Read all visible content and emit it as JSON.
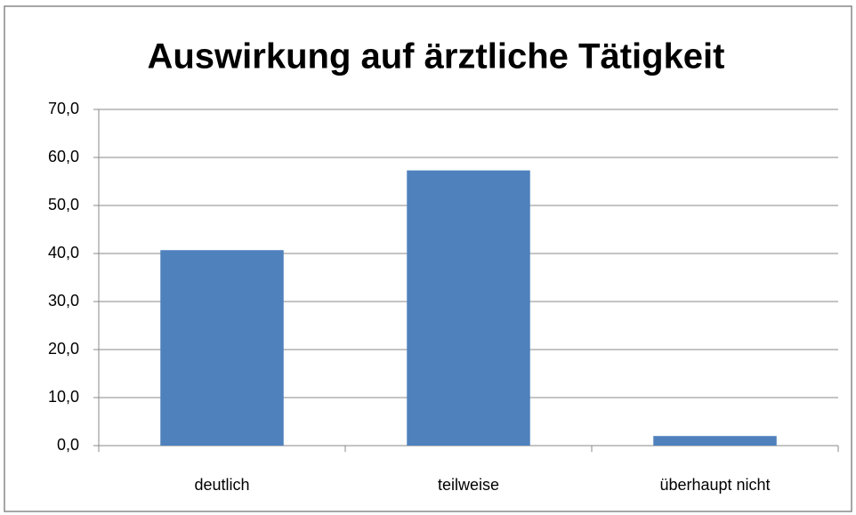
{
  "chart_data": {
    "type": "bar",
    "title": "Auswirkung auf ärztliche Tätigkeit",
    "categories": [
      "deutlich",
      "teilweise",
      "überhaupt nicht"
    ],
    "values": [
      40.7,
      57.3,
      2.0
    ],
    "color": "#4f81bd",
    "ylim": [
      0,
      70
    ],
    "yticks": [
      {
        "value": 0,
        "label": "0,0"
      },
      {
        "value": 10,
        "label": "10,0"
      },
      {
        "value": 20,
        "label": "20,0"
      },
      {
        "value": 30,
        "label": "30,0"
      },
      {
        "value": 40,
        "label": "40,0"
      },
      {
        "value": 50,
        "label": "50,0"
      },
      {
        "value": 60,
        "label": "60,0"
      },
      {
        "value": 70,
        "label": "70,0"
      }
    ],
    "grid": true
  }
}
